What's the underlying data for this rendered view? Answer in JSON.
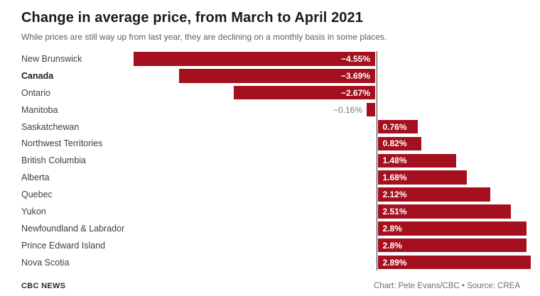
{
  "header": {
    "title": "Change in average price, from March to April 2021",
    "subtitle": "While prices are still way up from last year, they are declining on a monthly basis in some places."
  },
  "chart_data": {
    "type": "bar",
    "orientation": "horizontal",
    "unit": "percent",
    "categories": [
      "New Brunswick",
      "Canada",
      "Ontario",
      "Manitoba",
      "Saskatchewan",
      "Northwest Territories",
      "British Columbia",
      "Alberta",
      "Quebec",
      "Yukon",
      "Newfoundland & Labrador",
      "Prince Edward Island",
      "Nova Scotia"
    ],
    "values": [
      -4.55,
      -3.69,
      -2.67,
      -0.16,
      0.76,
      0.82,
      1.48,
      1.68,
      2.12,
      2.51,
      2.8,
      2.8,
      2.89
    ],
    "value_labels": [
      "−4.55%",
      "−3.69%",
      "−2.67%",
      "−0.16%",
      "0.76%",
      "0.82%",
      "1.48%",
      "1.68%",
      "2.12%",
      "2.51%",
      "2.8%",
      "2.8%",
      "2.89%"
    ],
    "emphasized_category": "Canada",
    "bar_color": "#a5101e",
    "axis_color": "#333333",
    "outside_label_color": "#777777",
    "xlim": [
      -4.55,
      2.89
    ],
    "grid": false,
    "legend": false,
    "title": "Change in average price, from March to April 2021",
    "xlabel": "",
    "ylabel": ""
  },
  "footer": {
    "left": "CBC NEWS",
    "right": "Chart: Pete Evans/CBC • Source: CREA"
  }
}
